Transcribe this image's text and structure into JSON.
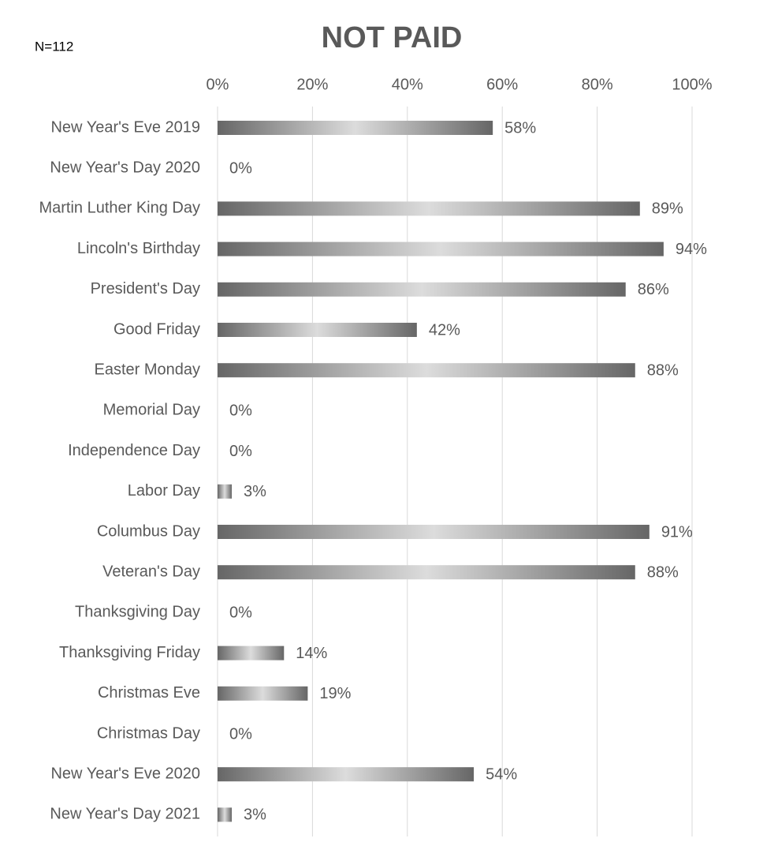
{
  "chart_data": {
    "type": "bar",
    "orientation": "horizontal",
    "title": "NOT PAID",
    "annotation": "N=112",
    "categories": [
      "New Year's Eve 2019",
      "New Year's Day 2020",
      "Martin Luther King Day",
      "Lincoln's Birthday",
      "President's Day",
      "Good Friday",
      "Easter Monday",
      "Memorial Day",
      "Independence Day",
      "Labor Day",
      "Columbus Day",
      "Veteran's Day",
      "Thanksgiving Day",
      "Thanksgiving Friday",
      "Christmas Eve",
      "Christmas Day",
      "New Year's Eve 2020",
      "New Year's Day 2021"
    ],
    "values": [
      58,
      0,
      89,
      94,
      86,
      42,
      88,
      0,
      0,
      3,
      91,
      88,
      0,
      14,
      19,
      0,
      54,
      3
    ],
    "value_labels": [
      "58%",
      "0%",
      "89%",
      "94%",
      "86%",
      "42%",
      "88%",
      "0%",
      "0%",
      "3%",
      "91%",
      "88%",
      "0%",
      "14%",
      "19%",
      "0%",
      "54%",
      "3%"
    ],
    "color": "#666666",
    "xlim": [
      0,
      100
    ],
    "xticks": [
      {
        "value": 0,
        "label": "0%"
      },
      {
        "value": 20,
        "label": "20%"
      },
      {
        "value": 40,
        "label": "40%"
      },
      {
        "value": 60,
        "label": "60%"
      },
      {
        "value": 80,
        "label": "80%"
      },
      {
        "value": 100,
        "label": "100%"
      }
    ],
    "grid": true
  }
}
